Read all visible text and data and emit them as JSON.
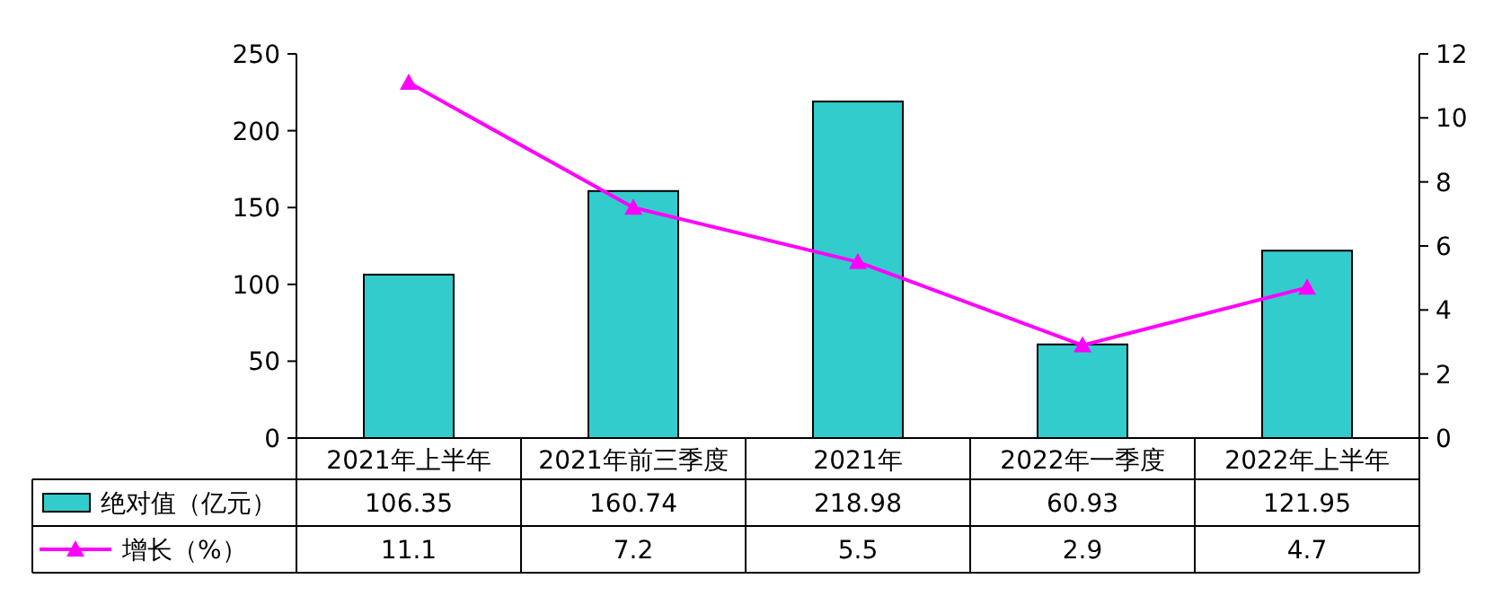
{
  "chart_data": {
    "type": "bar",
    "categories": [
      "2021年上半年",
      "2021年前三季度",
      "2021年",
      "2022年一季度",
      "2022年上半年"
    ],
    "series": [
      {
        "name": "绝对值（亿元）",
        "color": "#33cccc",
        "values": [
          106.35,
          160.74,
          218.98,
          60.93,
          121.95
        ]
      },
      {
        "name": "增长（%）",
        "type": "line",
        "axis": "y2",
        "color": "#ff00ff",
        "marker": "triangle",
        "values": [
          11.1,
          7.2,
          5.5,
          2.9,
          4.7
        ]
      }
    ],
    "ylim": [
      0,
      250
    ],
    "yticks": [
      0,
      50,
      100,
      150,
      200,
      250
    ],
    "y2lim": [
      0,
      12
    ],
    "y2ticks": [
      0,
      2,
      4,
      6,
      8,
      10,
      12
    ],
    "data_labels": true,
    "legend": "bottom",
    "grid": false
  }
}
